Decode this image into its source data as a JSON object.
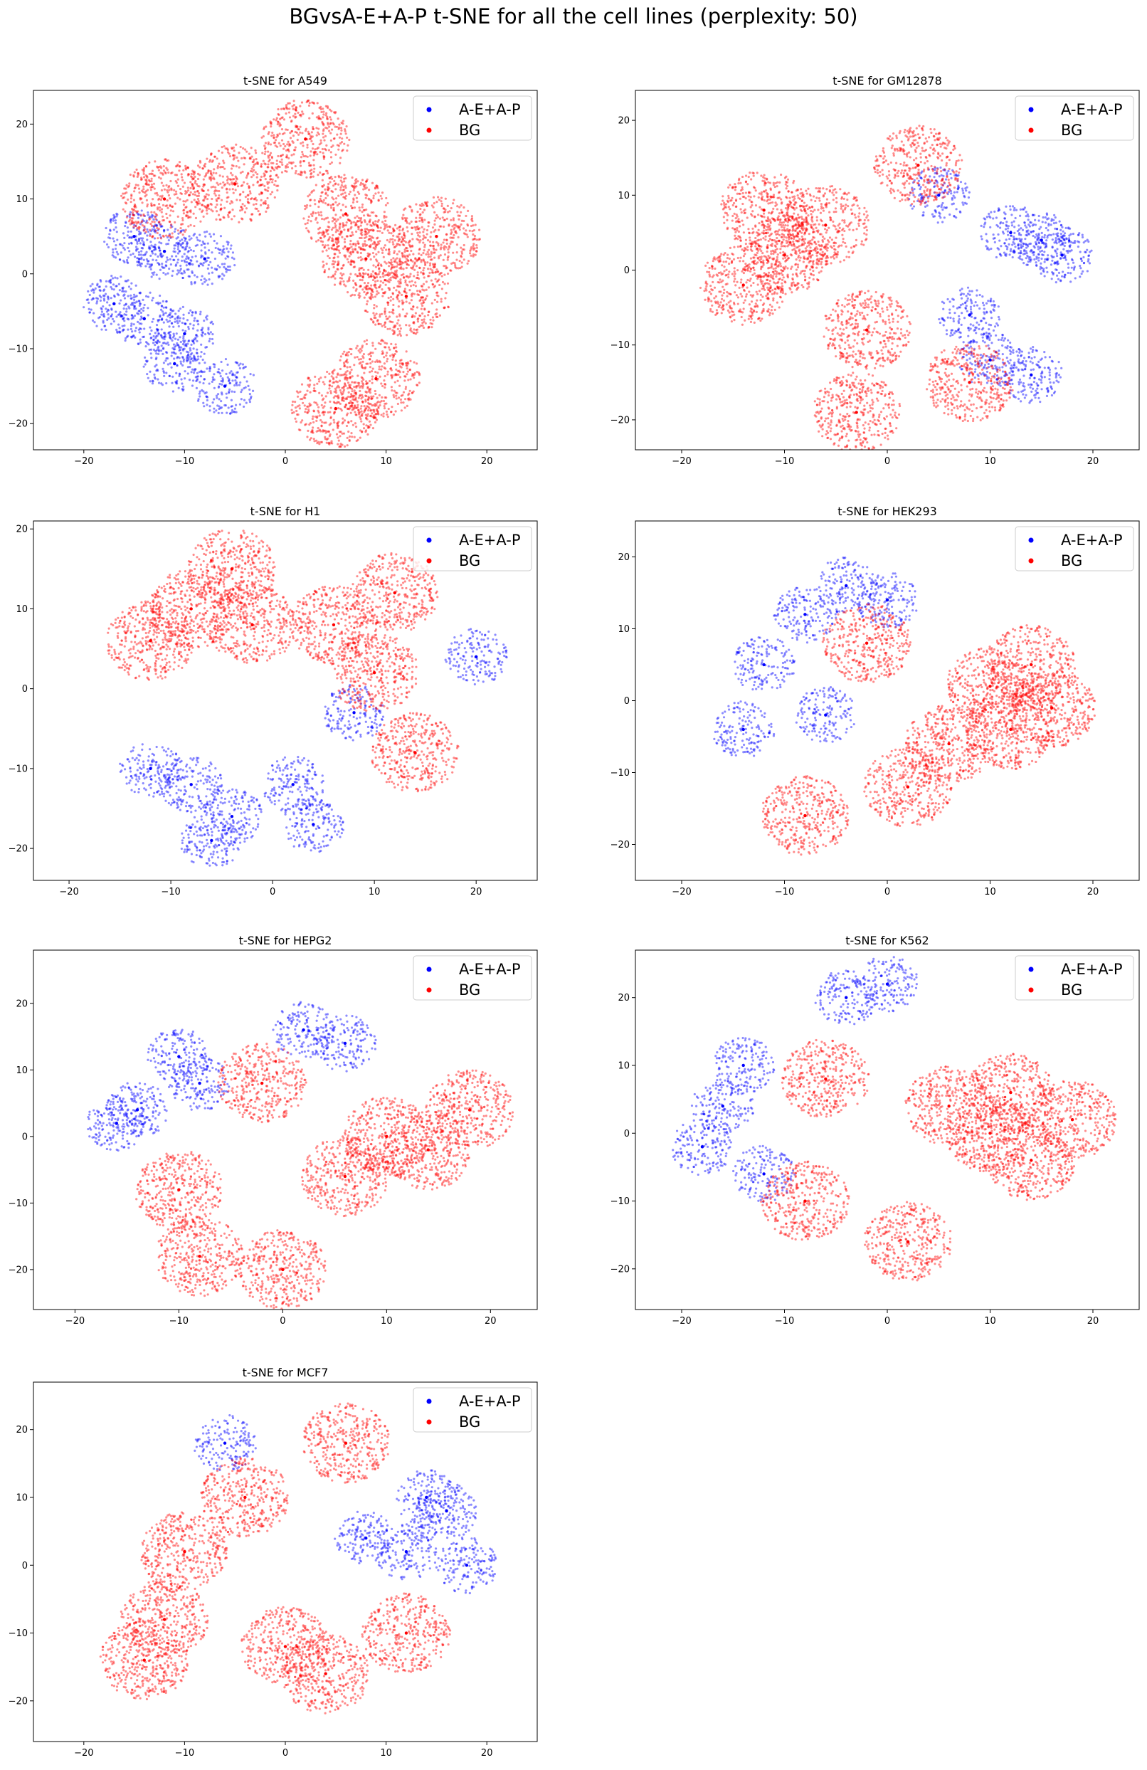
{
  "figure": {
    "title": "BGvsA-E+A-P  t-SNE for all the cell lines (perplexity: 50)"
  },
  "colors": {
    "A-E+A-P": "#0000ff",
    "BG": "#ff0000"
  },
  "chart_data": [
    {
      "type": "scatter",
      "title": "t-SNE for A549",
      "xlabel": "",
      "ylabel": "",
      "xlim": [
        -25,
        25
      ],
      "ylim": [
        -23.5,
        24.5
      ],
      "xticks": [
        "−20",
        "−10",
        "0",
        "10",
        "20"
      ],
      "xtick_values": [
        -20,
        -10,
        0,
        10,
        20
      ],
      "yticks": [
        "−20",
        "−10",
        "0",
        "10",
        "20"
      ],
      "ytick_values": [
        -20,
        -10,
        0,
        10,
        20
      ],
      "legend": {
        "placement": "upper right",
        "entries": [
          "A-E+A-P",
          "BG"
        ]
      },
      "grid": false,
      "series": [
        {
          "name": "A-E+A-P",
          "color": "#0000ff",
          "points": [
            [
              -14,
              -6
            ],
            [
              -12,
              3
            ],
            [
              -10,
              -8
            ],
            [
              -17,
              -4
            ],
            [
              -8,
              2
            ],
            [
              -15,
              5
            ],
            [
              -11,
              -12
            ],
            [
              -6,
              -15
            ]
          ]
        },
        {
          "name": "BG",
          "color": "#ff0000",
          "points": [
            [
              8,
              2
            ],
            [
              12,
              -3
            ],
            [
              6,
              8
            ],
            [
              9,
              -14
            ],
            [
              15,
              5
            ],
            [
              -5,
              12
            ],
            [
              -12,
              10
            ],
            [
              2,
              18
            ],
            [
              5,
              -18
            ]
          ]
        }
      ]
    },
    {
      "type": "scatter",
      "title": "t-SNE for GM12878",
      "xlabel": "",
      "ylabel": "",
      "xlim": [
        -24.5,
        24.5
      ],
      "ylim": [
        -24,
        24
      ],
      "xticks": [
        "−20",
        "−10",
        "0",
        "10",
        "20"
      ],
      "xtick_values": [
        -20,
        -10,
        0,
        10,
        20
      ],
      "yticks": [
        "−20",
        "−10",
        "0",
        "10",
        "20"
      ],
      "ytick_values": [
        -20,
        -10,
        0,
        10,
        20
      ],
      "legend": {
        "placement": "upper right",
        "entries": [
          "A-E+A-P",
          "BG"
        ]
      },
      "grid": false,
      "series": [
        {
          "name": "A-E+A-P",
          "color": "#0000ff",
          "points": [
            [
              12,
              5
            ],
            [
              10,
              -12
            ],
            [
              15,
              4
            ],
            [
              8,
              -6
            ],
            [
              14,
              -14
            ],
            [
              5,
              10
            ],
            [
              17,
              2
            ]
          ]
        },
        {
          "name": "BG",
          "color": "#ff0000",
          "points": [
            [
              -10,
              2
            ],
            [
              -14,
              -2
            ],
            [
              -6,
              6
            ],
            [
              -12,
              8
            ],
            [
              -2,
              -8
            ],
            [
              8,
              -15
            ],
            [
              3,
              14
            ],
            [
              -3,
              -19
            ]
          ]
        }
      ]
    },
    {
      "type": "scatter",
      "title": "t-SNE for H1",
      "xlabel": "",
      "ylabel": "",
      "xlim": [
        -23.5,
        26
      ],
      "ylim": [
        -24,
        21
      ],
      "xticks": [
        "−20",
        "−10",
        "0",
        "10",
        "20"
      ],
      "xtick_values": [
        -20,
        -10,
        0,
        10,
        20
      ],
      "yticks": [
        "−20",
        "−10",
        "0",
        "10",
        "20"
      ],
      "ytick_values": [
        -20,
        -10,
        0,
        10,
        20
      ],
      "legend": {
        "placement": "upper right",
        "entries": [
          "A-E+A-P",
          "BG"
        ]
      },
      "grid": false,
      "series": [
        {
          "name": "A-E+A-P",
          "color": "#0000ff",
          "points": [
            [
              -8,
              -12
            ],
            [
              -4,
              -16
            ],
            [
              2,
              -12
            ],
            [
              -12,
              -10
            ],
            [
              8,
              -3
            ],
            [
              20,
              4
            ],
            [
              -6,
              -19
            ],
            [
              4,
              -17
            ]
          ]
        },
        {
          "name": "BG",
          "color": "#ff0000",
          "points": [
            [
              -8,
              10
            ],
            [
              -12,
              6
            ],
            [
              -4,
              15
            ],
            [
              6,
              8
            ],
            [
              10,
              2
            ],
            [
              14,
              -8
            ],
            [
              -2,
              8
            ],
            [
              12,
              12
            ]
          ]
        }
      ]
    },
    {
      "type": "scatter",
      "title": "t-SNE for HEK293",
      "xlabel": "",
      "ylabel": "",
      "xlim": [
        -24.5,
        24.5
      ],
      "ylim": [
        -25,
        25
      ],
      "xticks": [
        "−20",
        "−10",
        "0",
        "10",
        "20"
      ],
      "xtick_values": [
        -20,
        -10,
        0,
        10,
        20
      ],
      "yticks": [
        "−20",
        "−10",
        "0",
        "10",
        "20"
      ],
      "ytick_values": [
        -20,
        -10,
        0,
        10,
        20
      ],
      "legend": {
        "placement": "upper right",
        "entries": [
          "A-E+A-P",
          "BG"
        ]
      },
      "grid": false,
      "series": [
        {
          "name": "A-E+A-P",
          "color": "#0000ff",
          "points": [
            [
              -8,
              12
            ],
            [
              -4,
              16
            ],
            [
              -12,
              5
            ],
            [
              0,
              14
            ],
            [
              -6,
              -2
            ],
            [
              -14,
              -4
            ]
          ]
        },
        {
          "name": "BG",
          "color": "#ff0000",
          "points": [
            [
              10,
              2
            ],
            [
              14,
              5
            ],
            [
              6,
              -6
            ],
            [
              12,
              -4
            ],
            [
              -2,
              8
            ],
            [
              2,
              -12
            ],
            [
              -8,
              -16
            ],
            [
              16,
              -1
            ]
          ]
        }
      ]
    },
    {
      "type": "scatter",
      "title": "t-SNE for HEPG2",
      "xlabel": "",
      "ylabel": "",
      "xlim": [
        -24,
        24.5
      ],
      "ylim": [
        -26,
        28
      ],
      "xticks": [
        "−20",
        "−10",
        "0",
        "10",
        "20"
      ],
      "xtick_values": [
        -20,
        -10,
        0,
        10,
        20
      ],
      "yticks": [
        "−20",
        "−10",
        "0",
        "10",
        "20"
      ],
      "ytick_values": [
        -20,
        -10,
        0,
        10,
        20
      ],
      "legend": {
        "placement": "upper right",
        "entries": [
          "A-E+A-P",
          "BG"
        ]
      },
      "grid": false,
      "series": [
        {
          "name": "A-E+A-P",
          "color": "#0000ff",
          "points": [
            [
              -14,
              4
            ],
            [
              -10,
              12
            ],
            [
              2,
              16
            ],
            [
              6,
              14
            ],
            [
              -16,
              2
            ],
            [
              -8,
              8
            ]
          ]
        },
        {
          "name": "BG",
          "color": "#ff0000",
          "points": [
            [
              10,
              0
            ],
            [
              14,
              -2
            ],
            [
              6,
              -6
            ],
            [
              -2,
              8
            ],
            [
              -10,
              -8
            ],
            [
              0,
              -20
            ],
            [
              -8,
              -18
            ],
            [
              18,
              4
            ]
          ]
        }
      ]
    },
    {
      "type": "scatter",
      "title": "t-SNE for K562",
      "xlabel": "",
      "ylabel": "",
      "xlim": [
        -24.5,
        24.5
      ],
      "ylim": [
        -26,
        27
      ],
      "xticks": [
        "−20",
        "−10",
        "0",
        "10",
        "20"
      ],
      "xtick_values": [
        -20,
        -10,
        0,
        10,
        20
      ],
      "yticks": [
        "−20",
        "−10",
        "0",
        "10",
        "20"
      ],
      "ytick_values": [
        -20,
        -10,
        0,
        10,
        20
      ],
      "legend": {
        "placement": "upper right",
        "entries": [
          "A-E+A-P",
          "BG"
        ]
      },
      "grid": false,
      "series": [
        {
          "name": "A-E+A-P",
          "color": "#0000ff",
          "points": [
            [
              -16,
              4
            ],
            [
              -18,
              -2
            ],
            [
              -14,
              10
            ],
            [
              -4,
              20
            ],
            [
              0,
              22
            ],
            [
              -12,
              -6
            ]
          ]
        },
        {
          "name": "BG",
          "color": "#ff0000",
          "points": [
            [
              10,
              0
            ],
            [
              14,
              -4
            ],
            [
              6,
              4
            ],
            [
              12,
              6
            ],
            [
              -6,
              8
            ],
            [
              2,
              -16
            ],
            [
              -8,
              -10
            ],
            [
              18,
              2
            ]
          ]
        }
      ]
    },
    {
      "type": "scatter",
      "title": "t-SNE for MCF7",
      "xlabel": "",
      "ylabel": "",
      "xlim": [
        -25,
        25
      ],
      "ylim": [
        -26,
        27
      ],
      "xticks": [
        "−20",
        "−10",
        "0",
        "10",
        "20"
      ],
      "xtick_values": [
        -20,
        -10,
        0,
        10,
        20
      ],
      "yticks": [
        "−20",
        "−10",
        "0",
        "10",
        "20"
      ],
      "ytick_values": [
        -20,
        -10,
        0,
        10,
        20
      ],
      "legend": {
        "placement": "upper right",
        "entries": [
          "A-E+A-P",
          "BG"
        ]
      },
      "grid": false,
      "series": [
        {
          "name": "A-E+A-P",
          "color": "#0000ff",
          "points": [
            [
              16,
              8
            ],
            [
              12,
              2
            ],
            [
              8,
              4
            ],
            [
              18,
              0
            ],
            [
              14,
              10
            ],
            [
              -6,
              18
            ]
          ]
        },
        {
          "name": "BG",
          "color": "#ff0000",
          "points": [
            [
              -12,
              -8
            ],
            [
              -10,
              2
            ],
            [
              4,
              -16
            ],
            [
              0,
              -12
            ],
            [
              -4,
              10
            ],
            [
              6,
              18
            ],
            [
              12,
              -10
            ],
            [
              -14,
              -14
            ]
          ]
        }
      ]
    }
  ]
}
